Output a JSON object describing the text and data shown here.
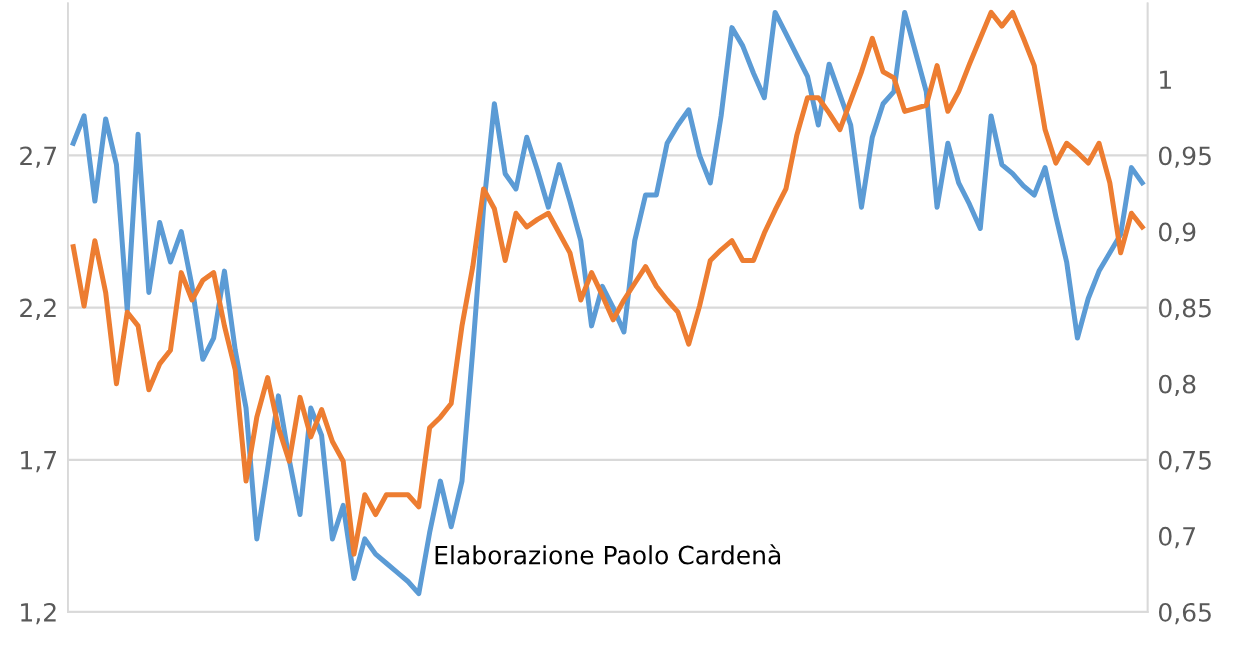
{
  "chart_data": {
    "type": "line",
    "annotations": [
      "Elaborazione Paolo Cardenà"
    ],
    "categories": [
      null,
      null,
      null,
      null,
      null,
      null,
      null,
      null,
      null,
      null,
      null,
      null,
      null,
      null,
      null,
      null,
      null,
      null,
      null,
      null,
      null,
      null,
      null,
      null,
      null,
      null,
      null,
      null,
      null,
      null,
      null,
      null,
      null,
      null,
      null,
      null,
      null,
      null,
      null,
      null,
      null,
      null,
      null,
      null,
      null,
      null,
      null,
      null,
      null,
      null,
      null,
      null,
      null,
      null,
      null,
      null,
      null,
      null,
      null,
      null,
      null,
      null,
      null,
      null,
      null,
      null,
      null,
      null,
      null,
      null,
      null,
      null,
      null,
      null,
      null,
      null,
      null,
      null,
      null,
      null,
      null,
      null,
      null,
      null,
      null,
      null,
      null,
      null,
      null,
      null,
      null,
      null,
      null,
      null,
      null,
      null,
      null,
      null,
      null,
      null
    ],
    "ylim": [
      1.2,
      3.2
    ],
    "yticks": [
      {
        "value": 1.2,
        "label": "1,2"
      },
      {
        "value": 1.7,
        "label": "1,7"
      },
      {
        "value": 2.2,
        "label": "2,2"
      },
      {
        "value": 2.7,
        "label": "2,7"
      }
    ],
    "y2lim": [
      0.65,
      1.05
    ],
    "y2ticks": [
      {
        "value": 0.65,
        "label": "0,65"
      },
      {
        "value": 0.7,
        "label": "0,7"
      },
      {
        "value": 0.75,
        "label": "0,75"
      },
      {
        "value": 0.8,
        "label": "0,8"
      },
      {
        "value": 0.85,
        "label": "0,85"
      },
      {
        "value": 0.9,
        "label": "0,9"
      },
      {
        "value": 0.95,
        "label": "0,95"
      },
      {
        "value": 1,
        "label": "1"
      }
    ],
    "grid": "y",
    "marker": "none",
    "line_style": "solid",
    "series": [
      {
        "color": "#5b9bd5",
        "values": [
          2.74,
          2.83,
          2.55,
          2.82,
          2.67,
          2.19,
          2.77,
          2.25,
          2.48,
          2.35,
          2.45,
          2.27,
          2.03,
          2.1,
          2.32,
          2.06,
          1.87,
          1.44,
          1.67,
          1.91,
          1.7,
          1.52,
          1.87,
          1.78,
          1.44,
          1.55,
          1.31,
          1.44,
          1.39,
          1.36,
          1.33,
          1.3,
          1.26,
          1.46,
          1.63,
          1.48,
          1.63,
          2.06,
          2.53,
          2.87,
          2.64,
          2.59,
          2.76,
          2.65,
          2.53,
          2.67,
          2.55,
          2.42,
          2.14,
          2.27,
          2.2,
          2.12,
          2.42,
          2.57,
          2.57,
          2.74,
          2.8,
          2.85,
          2.7,
          2.61,
          2.83,
          3.12,
          3.06,
          2.97,
          2.89,
          3.17,
          3.1,
          3.03,
          2.96,
          2.8,
          3.0,
          2.9,
          2.8,
          2.53,
          2.76,
          2.87,
          2.91,
          3.17,
          3.04,
          2.91,
          2.53,
          2.74,
          2.61,
          2.54,
          2.46,
          2.83,
          2.67,
          2.64,
          2.6,
          2.57,
          2.66,
          2.5,
          2.35,
          2.1,
          2.23,
          2.32,
          2.38,
          2.44,
          2.66,
          2.61
        ]
      },
      {
        "color": "#ed7d31",
        "axis": "y2",
        "values": [
          0.89,
          0.851,
          0.894,
          0.86,
          0.8,
          0.847,
          0.838,
          0.796,
          0.813,
          0.822,
          0.873,
          0.855,
          0.868,
          0.873,
          0.838,
          0.809,
          0.736,
          0.778,
          0.804,
          0.771,
          0.749,
          0.791,
          0.765,
          0.783,
          0.762,
          0.749,
          0.688,
          0.727,
          0.714,
          0.727,
          0.727,
          0.727,
          0.719,
          0.771,
          0.778,
          0.787,
          0.838,
          0.877,
          0.928,
          0.915,
          0.881,
          0.912,
          0.903,
          0.908,
          0.912,
          0.899,
          0.886,
          0.855,
          0.873,
          0.858,
          0.842,
          0.855,
          0.866,
          0.877,
          0.864,
          0.855,
          0.847,
          0.826,
          0.851,
          0.881,
          0.888,
          0.894,
          0.881,
          0.881,
          0.899,
          0.914,
          0.928,
          0.963,
          0.988,
          0.988,
          0.978,
          0.967,
          0.986,
          1.005,
          1.027,
          1.005,
          1.001,
          0.979,
          0.981,
          0.983,
          1.009,
          0.979,
          0.992,
          1.01,
          1.027,
          1.044,
          1.035,
          1.044,
          1.027,
          1.009,
          0.967,
          0.945,
          0.958,
          0.952,
          0.945,
          0.958,
          0.932,
          0.886,
          0.912,
          0.903
        ]
      }
    ]
  }
}
